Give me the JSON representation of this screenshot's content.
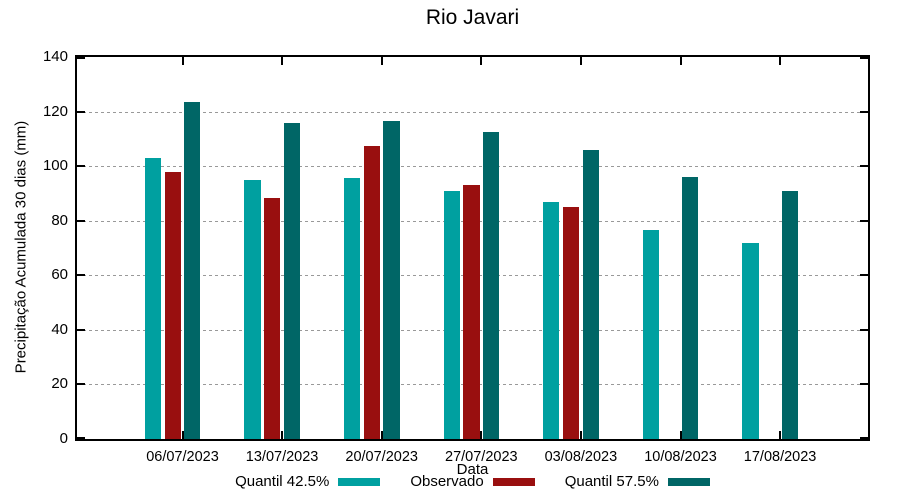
{
  "chart_data": {
    "type": "bar",
    "title": "Rio Javari",
    "xlabel": "Data",
    "ylabel": "Precipitação Acumulada 30 dias (mm)",
    "ylim": [
      0,
      140
    ],
    "ytick_step": 20,
    "grid": true,
    "legend_position": "bottom",
    "categories": [
      "06/07/2023",
      "13/07/2023",
      "20/07/2023",
      "27/07/2023",
      "03/08/2023",
      "10/08/2023",
      "17/08/2023"
    ],
    "series": [
      {
        "name": "Quantil 42.5%",
        "color": "#00A0A0",
        "values": [
          103,
          95,
          95.5,
          91,
          87,
          76.5,
          72
        ]
      },
      {
        "name": "Observado",
        "color": "#990F0F",
        "values": [
          98,
          88.5,
          107.5,
          93,
          85,
          null,
          null
        ]
      },
      {
        "name": "Quantil 57.5%",
        "color": "#006666",
        "values": [
          123.5,
          116,
          116.5,
          112.5,
          106,
          96,
          91
        ]
      }
    ]
  }
}
